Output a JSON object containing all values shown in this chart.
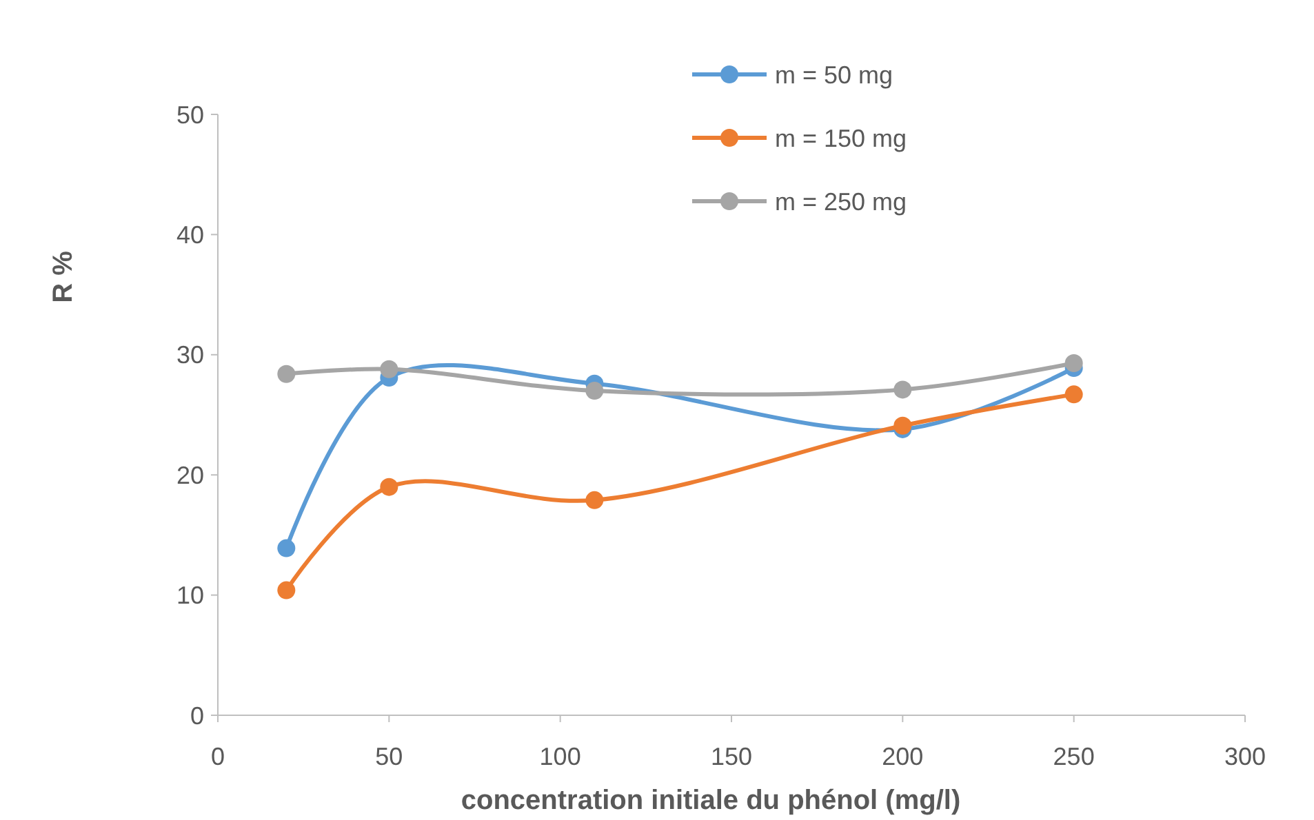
{
  "chart_data": {
    "type": "line",
    "xlabel": "concentration initiale du phénol (mg/l)",
    "ylabel": "R %",
    "x": [
      20,
      50,
      110,
      200,
      250
    ],
    "series": [
      {
        "name": "m = 50 mg",
        "color": "#5b9bd5",
        "values": [
          13.9,
          28.1,
          27.6,
          23.8,
          28.9
        ]
      },
      {
        "name": "m = 150 mg",
        "color": "#ed7d31",
        "values": [
          10.4,
          19.0,
          17.9,
          24.1,
          26.7
        ]
      },
      {
        "name": "m = 250 mg",
        "color": "#a5a5a5",
        "values": [
          28.4,
          28.8,
          27.0,
          27.1,
          29.3
        ]
      }
    ],
    "xlim": [
      0,
      300
    ],
    "xticks": [
      0,
      50,
      100,
      150,
      200,
      250,
      300
    ],
    "ylim": [
      0,
      50
    ],
    "yticks": [
      0,
      10,
      20,
      30,
      40,
      50
    ],
    "grid": false,
    "legend": "top right",
    "marker": "circle",
    "line_style": "solid"
  }
}
